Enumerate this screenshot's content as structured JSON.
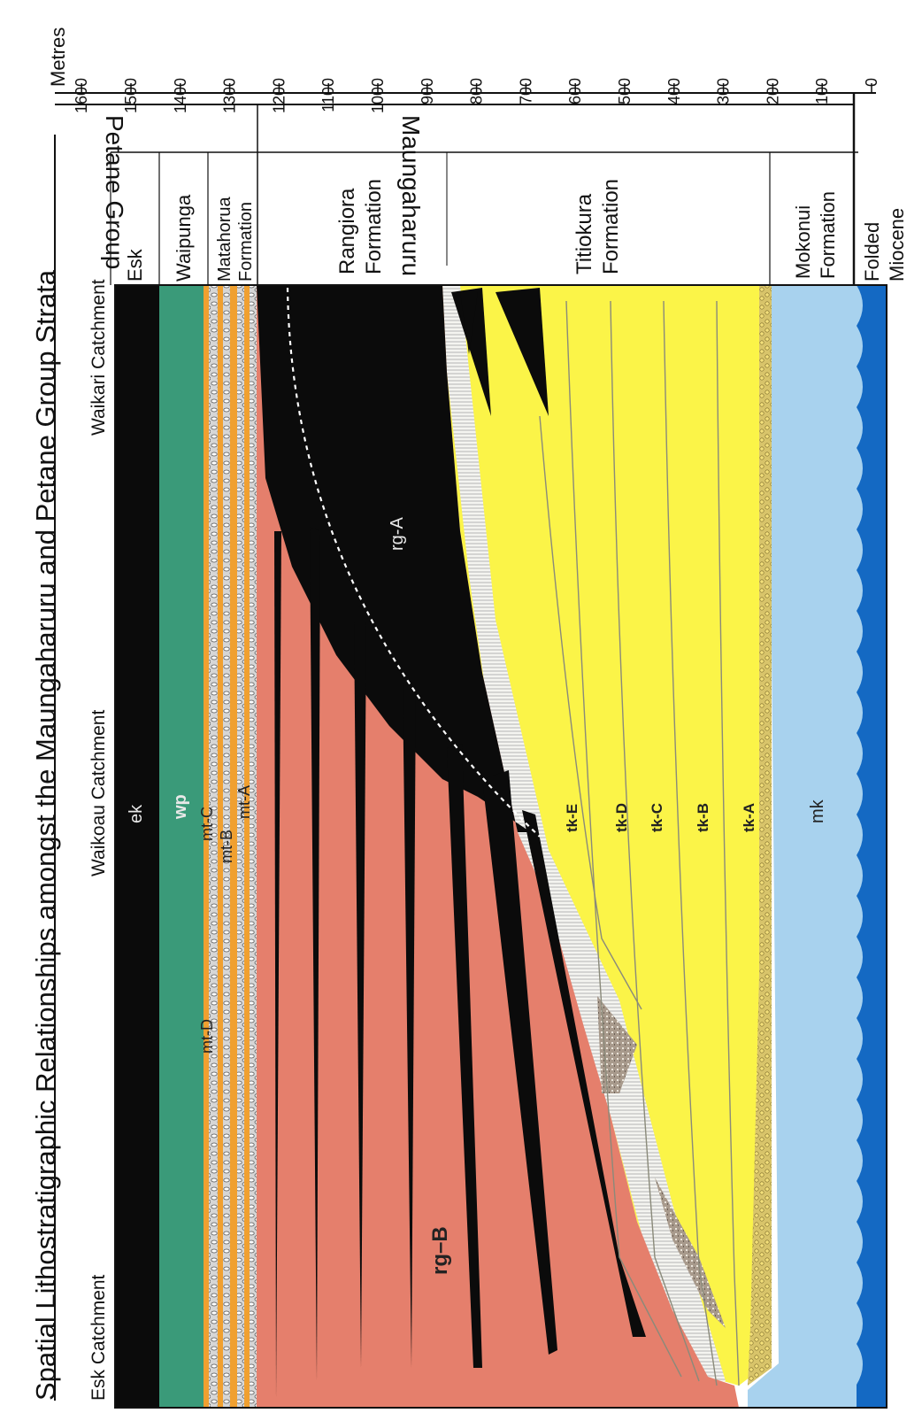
{
  "title": "Spatial Lithostratigraphic Relationships amongst the Maungaharuru and Petane Group Strata",
  "scale": {
    "label": "Metres",
    "ticks": [
      "0",
      "100",
      "200",
      "300",
      "400",
      "500",
      "600",
      "700",
      "800",
      "900",
      "1000",
      "1100",
      "1200",
      "1300",
      "1400",
      "1500",
      "1600"
    ]
  },
  "groups": {
    "petane": "Petane Group",
    "maungaharuru": "Maungaharuru Group"
  },
  "formations": {
    "esk": "Esk",
    "waipunga": "Waipunga",
    "matahorua": [
      "Matahorua",
      "Formation"
    ],
    "rangiora": [
      "Rangiora",
      "Formation"
    ],
    "titiokura": [
      "Titiokura",
      "Formation"
    ],
    "mokonui": [
      "Mokonui",
      "Formation"
    ],
    "folded": [
      "Folded",
      "Miocene"
    ]
  },
  "catchments": {
    "esk": "Esk Catchment",
    "waikoau": "Waikoau Catchment",
    "waikari": "Waikari Catchment"
  },
  "units": {
    "ek": "ek",
    "wp": "wp",
    "mtA": "mt-A",
    "mtB": "mt-B",
    "mtC": "mt-C",
    "mtD": "mt-D",
    "rgA": "rg-A",
    "rgB": "rg–B",
    "tkA": "tk-A",
    "tkB": "tk-B",
    "tkC": "tk-C",
    "tkD": "tk-D",
    "tkE": "tk-E",
    "mk": "mk"
  },
  "colors": {
    "esk": "#0b0b0b",
    "waipunga": "#3a9a79",
    "matahorua": "#f0a030",
    "rangiora_a": "#0b0b0b",
    "rangiora_b": "#e57f6c",
    "titiokura": "#fbf448",
    "mokonui": "#a8d2ee",
    "basement": "#1469c3"
  }
}
